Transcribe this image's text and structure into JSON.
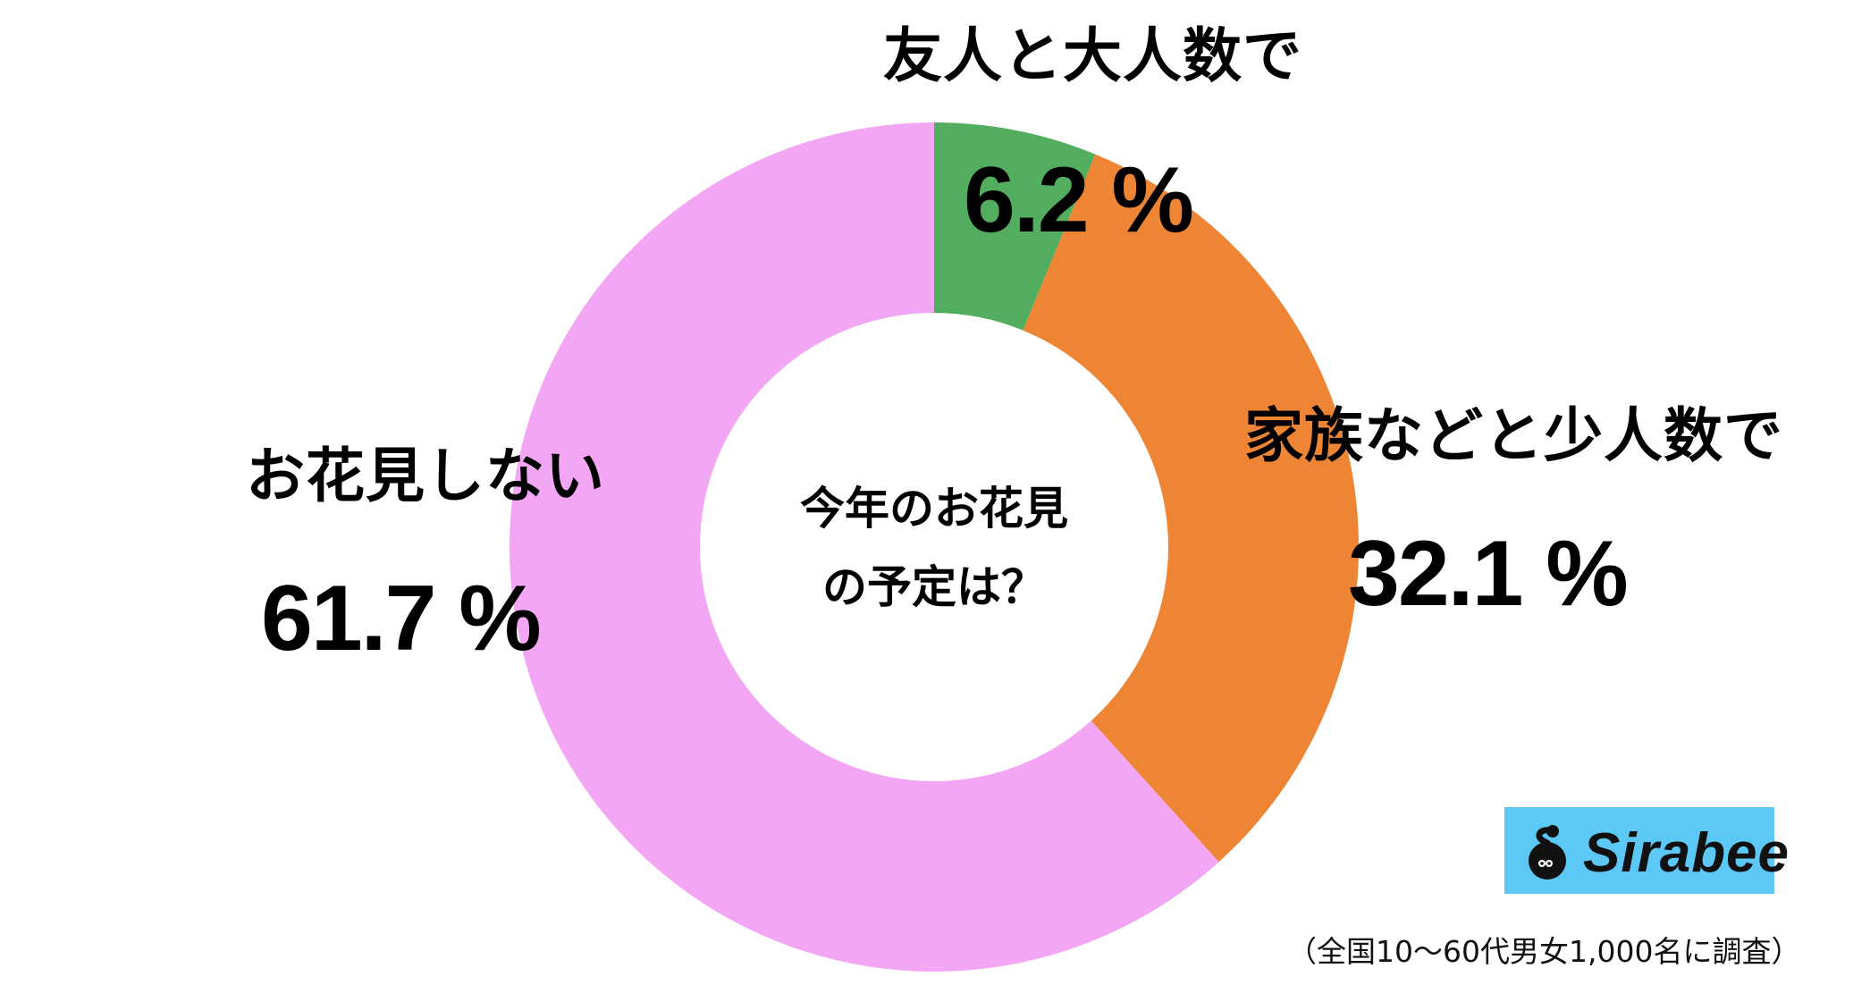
{
  "chart_data": {
    "type": "pie",
    "variant": "donut",
    "title": "今年のお花見の予定は？",
    "categories": [
      "友人と大人数で",
      "家族などと少人数で",
      "お花見しない"
    ],
    "values": [
      6.2,
      32.1,
      61.7
    ],
    "unit": "%",
    "colors": [
      "#52AD5E",
      "#EE8535",
      "#F2A6F3"
    ],
    "start_angle_deg": 0,
    "direction": "clockwise",
    "legend": "none (direct labels)",
    "note": "（全国10〜60代男女1,000名に調査）"
  },
  "center": {
    "line1": "今年のお花見",
    "line2": "の予定は？"
  },
  "labels": [
    {
      "category": "友人と大人数で",
      "percent": "6.2 %"
    },
    {
      "category": "家族などと少人数で",
      "percent": "32.1 %"
    },
    {
      "category": "お花見しない",
      "percent": "61.7 %"
    }
  ],
  "brand": {
    "name": "Sirabee",
    "color": "#5BC8F5"
  },
  "footnote": "（全国10〜60代男女1,000名に調査）"
}
